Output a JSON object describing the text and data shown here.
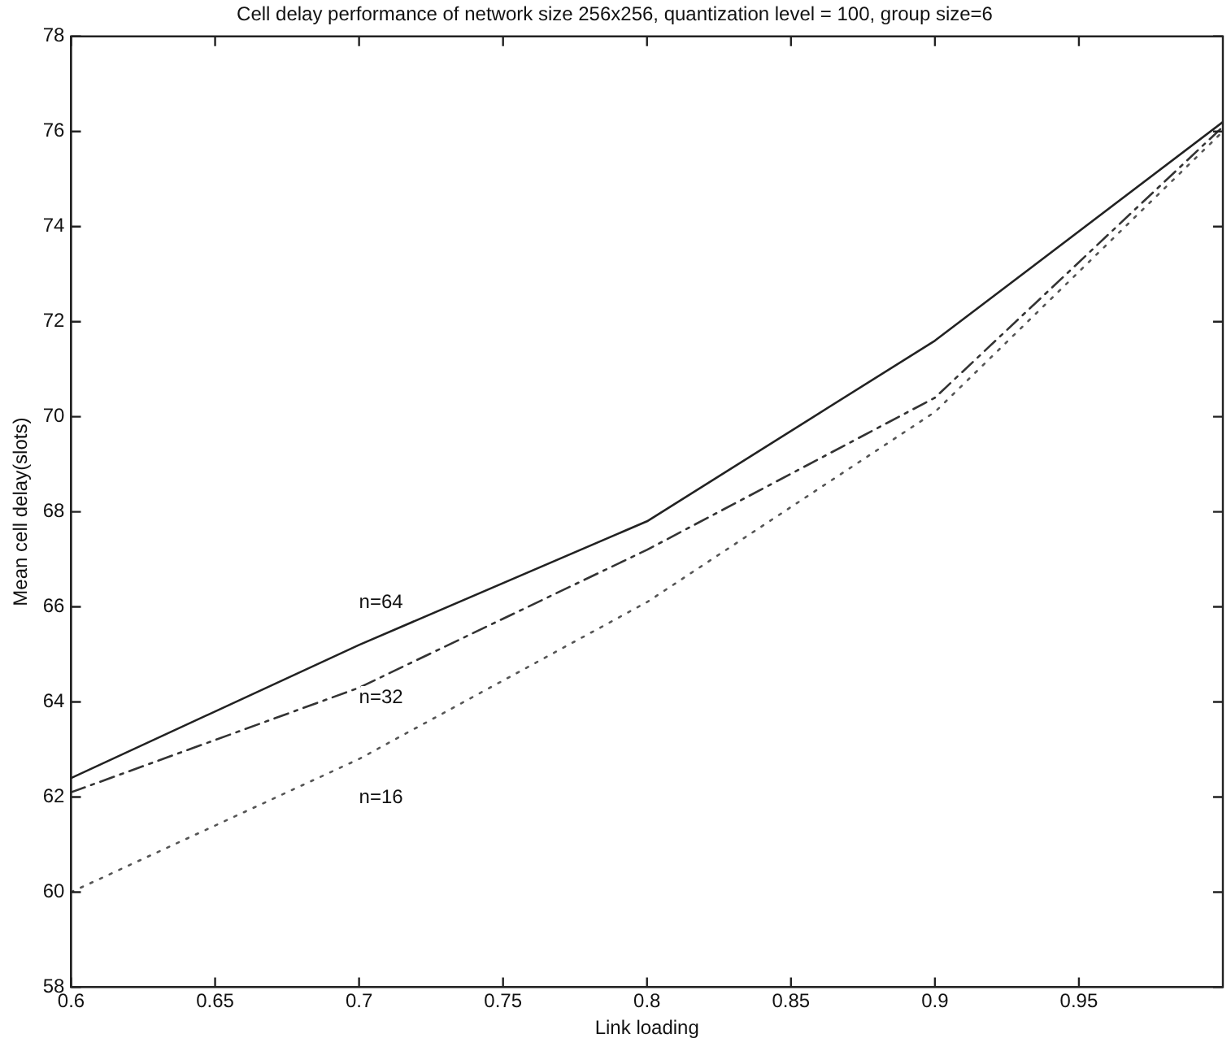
{
  "chart_data": {
    "type": "line",
    "title": "Cell delay performance of network size 256x256, quantization level = 100, group size=6",
    "xlabel": "Link loading",
    "ylabel": "Mean cell delay(slots)",
    "x": [
      0.6,
      0.7,
      0.8,
      0.9,
      1.0
    ],
    "series": [
      {
        "name": "n=64",
        "color": "#222222",
        "line_style": "solid",
        "values": [
          62.4,
          65.2,
          67.8,
          71.6,
          76.2
        ]
      },
      {
        "name": "n=32",
        "color": "#333333",
        "line_style": "dashdot",
        "values": [
          62.1,
          64.3,
          67.2,
          70.4,
          76.1
        ]
      },
      {
        "name": "n=16",
        "color": "#555555",
        "line_style": "dotted",
        "values": [
          60.0,
          62.8,
          66.1,
          70.1,
          76.0
        ]
      }
    ],
    "xlim": [
      0.6,
      1.0
    ],
    "xticks": [
      0.6,
      0.65,
      0.7,
      0.75,
      0.8,
      0.85,
      0.9,
      0.95
    ],
    "ylim": [
      58,
      78
    ],
    "yticks": [
      58,
      60,
      62,
      64,
      66,
      68,
      70,
      72,
      74,
      76,
      78
    ],
    "grid": false,
    "legend": false,
    "marker": "none"
  }
}
